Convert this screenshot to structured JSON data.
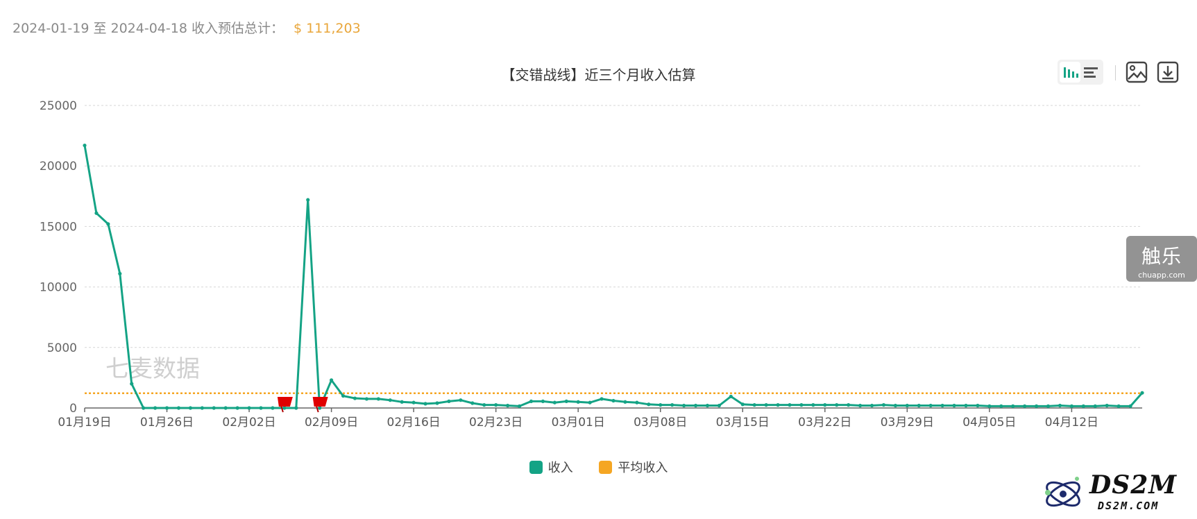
{
  "summary": {
    "range_text": "2024-01-19 至 2024-04-18 收入预估总计：",
    "total": "$ 111,203"
  },
  "chart_data": {
    "type": "line",
    "title": "【交错战线】近三个月收入估算",
    "x_start": "2024-01-19",
    "x_end": "2024-04-18",
    "ylim": [
      0,
      25000
    ],
    "y_ticks": [
      "0",
      "5000",
      "10000",
      "15000",
      "20000",
      "25000"
    ],
    "x_ticks": [
      "01月19日",
      "01月26日",
      "02月02日",
      "02月09日",
      "02月16日",
      "02月23日",
      "03月01日",
      "03月08日",
      "03月15日",
      "03月22日",
      "03月29日",
      "04月05日",
      "04月12日"
    ],
    "grid": true,
    "legend_position": "bottom",
    "watermark_text": "七麦数据",
    "flags": [
      "2024-02-05",
      "2024-02-08"
    ],
    "series": [
      {
        "name": "收入",
        "color": "#14a385",
        "values": [
          21700,
          16100,
          15200,
          11100,
          2000,
          0,
          0,
          0,
          0,
          0,
          0,
          0,
          0,
          0,
          0,
          0,
          0,
          0,
          0,
          17200,
          0,
          2300,
          1000,
          800,
          750,
          750,
          650,
          500,
          450,
          350,
          400,
          550,
          650,
          400,
          250,
          250,
          200,
          150,
          550,
          550,
          450,
          550,
          500,
          450,
          750,
          600,
          500,
          450,
          300,
          250,
          250,
          200,
          200,
          200,
          200,
          950,
          300,
          250,
          250,
          250,
          250,
          250,
          250,
          250,
          250,
          250,
          200,
          200,
          250,
          200,
          200,
          200,
          200,
          200,
          200,
          200,
          200,
          150,
          150,
          150,
          150,
          150,
          150,
          200,
          150,
          150,
          150,
          200,
          150,
          150,
          1250
        ]
      },
      {
        "name": "平均收入",
        "color": "#f5a623",
        "constant": 1222
      }
    ]
  }
}
